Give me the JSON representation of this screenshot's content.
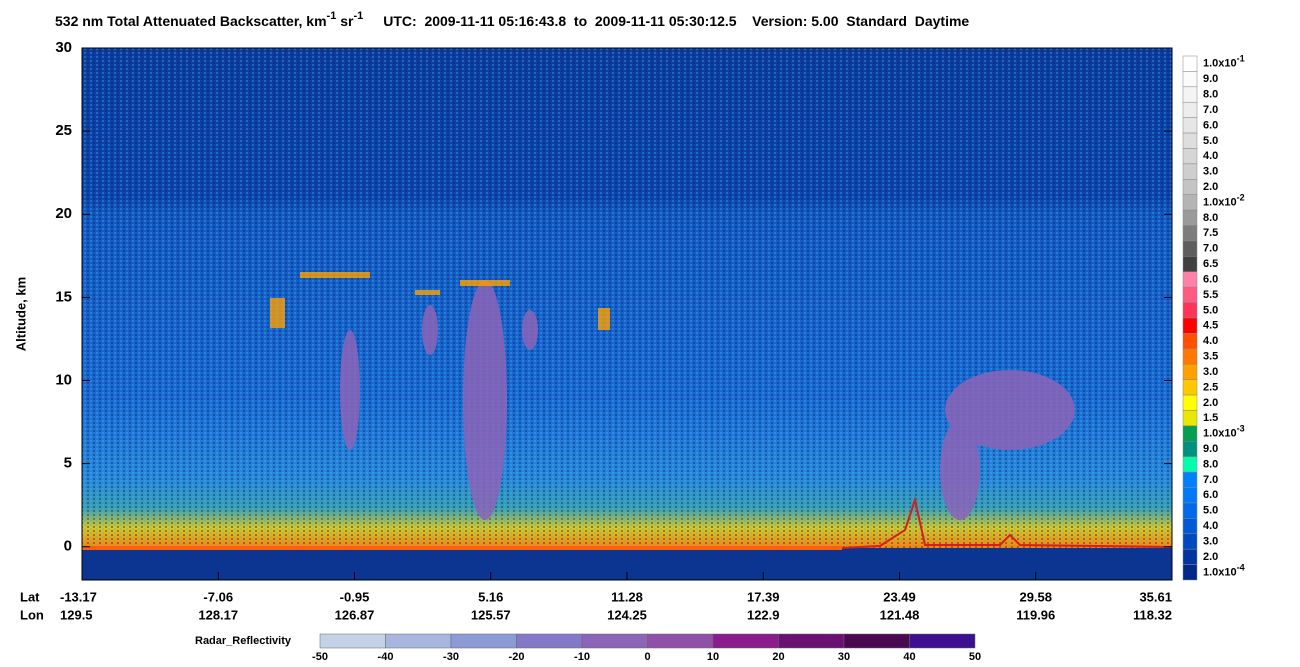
{
  "chart_data": {
    "type": "heatmap",
    "title": [
      "532 nm Total Attenuated Backscatter, km",
      "-1",
      " sr",
      "-1"
    ],
    "subtitle": "UTC:  2009-11-11 05:16:43.8  to  2009-11-11 05:30:12.5    Version: 5.00  Standard  Daytime",
    "ylabel": "Altitude, km",
    "ylim": [
      -2,
      30
    ],
    "yticks": [
      0,
      5,
      10,
      15,
      20,
      25,
      30
    ],
    "x_rows": [
      {
        "name": "Lat",
        "values": [
          -13.17,
          -7.06,
          -0.95,
          5.16,
          11.28,
          17.39,
          23.49,
          29.58,
          35.61
        ]
      },
      {
        "name": "Lon",
        "values": [
          129.5,
          128.17,
          126.87,
          125.57,
          124.25,
          122.9,
          121.48,
          119.96,
          118.32
        ]
      }
    ],
    "colorbar": [
      {
        "label": "1.0x10",
        "exp": "-1",
        "color": "#ffffff"
      },
      {
        "label": "9.0",
        "color": "#fbfbfb"
      },
      {
        "label": "8.0",
        "color": "#f4f4f4"
      },
      {
        "label": "7.0",
        "color": "#ededed"
      },
      {
        "label": "6.0",
        "color": "#e6e6e6"
      },
      {
        "label": "5.0",
        "color": "#dedede"
      },
      {
        "label": "4.0",
        "color": "#d6d6d6"
      },
      {
        "label": "3.0",
        "color": "#cecece"
      },
      {
        "label": "2.0",
        "color": "#c4c4c4"
      },
      {
        "label": "1.0x10",
        "exp": "-2",
        "color": "#b4b4b4"
      },
      {
        "label": "8.0",
        "color": "#9a9a9a"
      },
      {
        "label": "7.5",
        "color": "#7c7c7c"
      },
      {
        "label": "7.0",
        "color": "#5e5e5e"
      },
      {
        "label": "6.5",
        "color": "#404040"
      },
      {
        "label": "6.0",
        "color": "#ff80a8"
      },
      {
        "label": "5.5",
        "color": "#ff5a80"
      },
      {
        "label": "5.0",
        "color": "#ff3458"
      },
      {
        "label": "4.5",
        "color": "#ff0000"
      },
      {
        "label": "4.0",
        "color": "#ff5000"
      },
      {
        "label": "3.5",
        "color": "#ff7800"
      },
      {
        "label": "3.0",
        "color": "#ffa000"
      },
      {
        "label": "2.5",
        "color": "#ffc800"
      },
      {
        "label": "2.0",
        "color": "#ffff00"
      },
      {
        "label": "1.5",
        "color": "#e8e800"
      },
      {
        "label": "1.0x10",
        "exp": "-3",
        "color": "#00a050"
      },
      {
        "label": "9.0",
        "color": "#009080"
      },
      {
        "label": "8.0",
        "color": "#00ffaa"
      },
      {
        "label": "7.0",
        "color": "#0080ff"
      },
      {
        "label": "6.0",
        "color": "#0078f8"
      },
      {
        "label": "5.0",
        "color": "#006ae8"
      },
      {
        "label": "4.0",
        "color": "#005ad8"
      },
      {
        "label": "3.0",
        "color": "#004ac0"
      },
      {
        "label": "2.0",
        "color": "#0034a0"
      },
      {
        "label": "1.0x10",
        "exp": "-4",
        "color": "#002888"
      }
    ],
    "colorbar2": {
      "name": "Radar_Reflectivity",
      "lim": [
        -50,
        50
      ],
      "ticks": [
        -50,
        -40,
        -30,
        -20,
        -10,
        0,
        10,
        20,
        30,
        40,
        50
      ],
      "colors": [
        "#c4d2e8",
        "#a6b6e0",
        "#8c9ad6",
        "#8478c8",
        "#8c64b8",
        "#9050a8",
        "#8a1c8c",
        "#6a1070",
        "#4a0850",
        "#3c1090"
      ]
    }
  }
}
